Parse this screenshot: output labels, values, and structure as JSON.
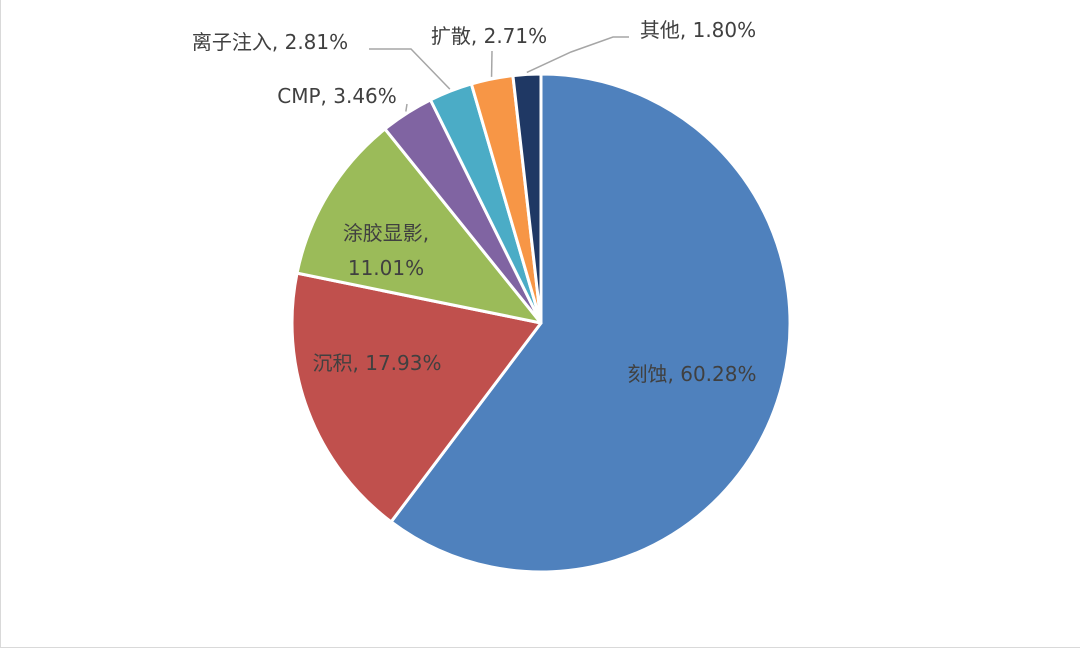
{
  "chart_data": {
    "type": "pie",
    "slices": [
      {
        "label": "刻蚀",
        "value": 60.28,
        "display": "刻蚀, 60.28%",
        "color": "#4f81bd"
      },
      {
        "label": "沉积",
        "value": 17.93,
        "display": "沉积, 17.93%",
        "color": "#c0504d"
      },
      {
        "label": "涂胶显影",
        "value": 11.01,
        "display_lines": [
          "涂胶显影,",
          "11.01%"
        ],
        "color": "#9bbb59"
      },
      {
        "label": "CMP",
        "value": 3.46,
        "display": "CMP, 3.46%",
        "color": "#8064a2"
      },
      {
        "label": "离子注入",
        "value": 2.81,
        "display": "离子注入, 2.81%",
        "color": "#4bacc6"
      },
      {
        "label": "扩散",
        "value": 2.71,
        "display": "扩散, 2.71%",
        "color": "#f79646"
      },
      {
        "label": "其他",
        "value": 1.8,
        "display": "其他, 1.80%",
        "color": "#1f3864"
      }
    ],
    "start_angle_deg": 0,
    "direction": "clockwise",
    "data_labels": true,
    "leader_line_color": "#a6a6a6"
  }
}
